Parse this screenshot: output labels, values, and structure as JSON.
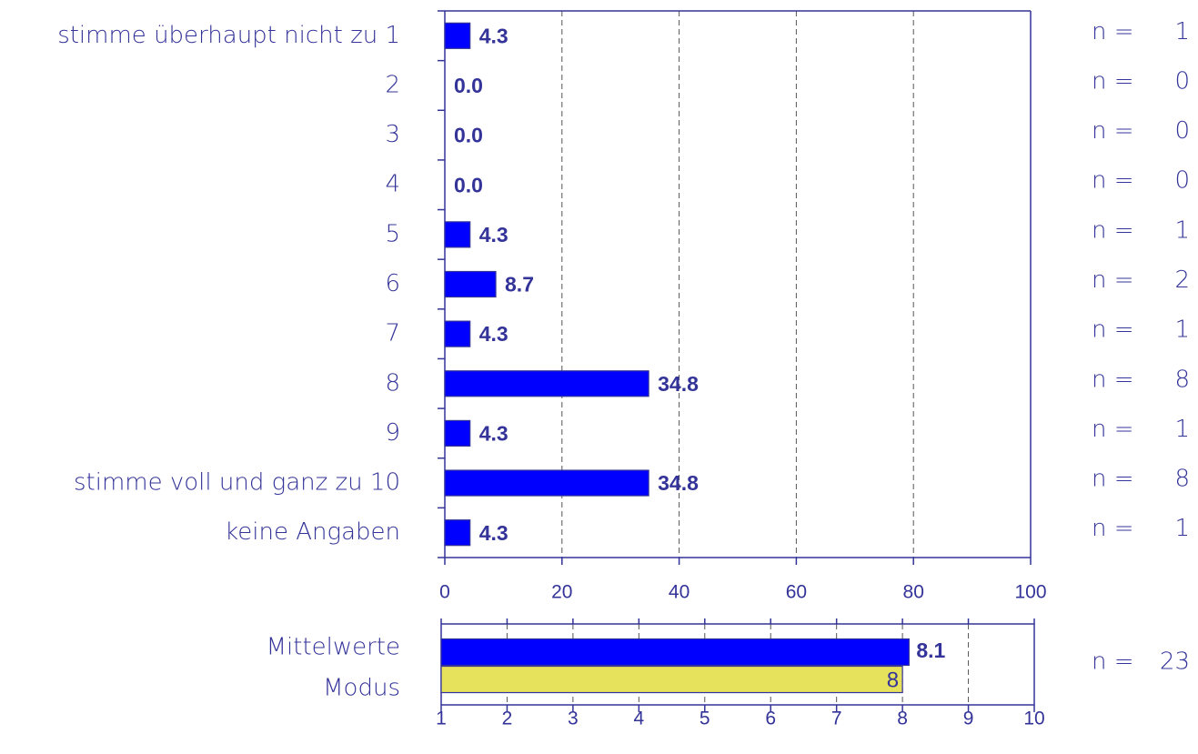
{
  "chart_data": [
    {
      "type": "bar",
      "categories": [
        "stimme überhaupt nicht zu 1",
        "2",
        "3",
        "4",
        "5",
        "6",
        "7",
        "8",
        "9",
        "stimme voll und ganz zu 10",
        "keine Angaben"
      ],
      "values": [
        4.3,
        0.0,
        0.0,
        0.0,
        4.3,
        8.7,
        4.3,
        34.8,
        4.3,
        34.8,
        4.3
      ],
      "value_labels": [
        "4.3",
        "0.0",
        "0.0",
        "0.0",
        "4.3",
        "8.7",
        "4.3",
        "34.8",
        "4.3",
        "34.8",
        "4.3"
      ],
      "n_label": "n =",
      "counts": [
        1,
        0,
        0,
        0,
        1,
        2,
        1,
        8,
        1,
        8,
        1
      ],
      "color": "#0000ff",
      "xlim": [
        0,
        100
      ],
      "xticks": [
        0,
        20,
        40,
        60,
        80,
        100
      ],
      "grid": true
    },
    {
      "type": "bar",
      "categories": [
        "Mittelwerte",
        "Modus"
      ],
      "values": [
        8.1,
        8
      ],
      "colors": [
        "#0000ff",
        "#e6e25c"
      ],
      "n_label": "n =",
      "count": 23,
      "xlim": [
        1,
        10
      ],
      "xticks": [
        1,
        2,
        3,
        4,
        5,
        6,
        7,
        8,
        9,
        10
      ],
      "grid": true
    }
  ]
}
